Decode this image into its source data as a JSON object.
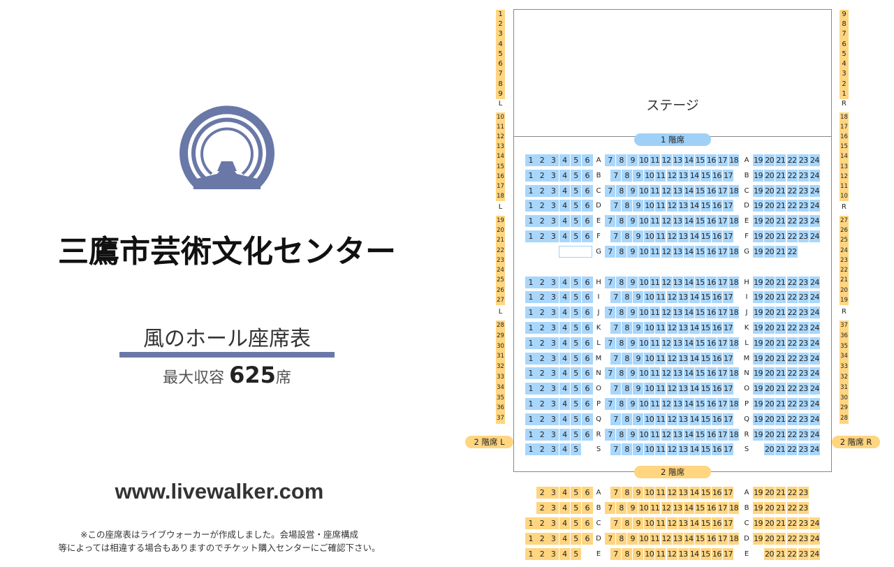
{
  "venue": {
    "name": "三鷹市芸術文化センター",
    "chart_title": "風のホール座席表",
    "capacity_prefix": "最大収容",
    "capacity_number": "625",
    "capacity_suffix": "席",
    "website": "www.livewalker.com",
    "note_line1": "※この座席表はライブウォーカーが作成しました。会場設営・座席構成",
    "note_line2": "等によっては相違する場合もありますのでチケット購入センターにご確認下さい。",
    "logo_icon": "city-emblem-icon",
    "logo_color": "#6a78a8"
  },
  "map": {
    "stage": "ステージ",
    "floor1": "1 階席",
    "floor2": "2 階席",
    "floor2_left": "2 階席 L",
    "floor2_right": "2 階席 R",
    "seat_color_1f": "#a9d6fb",
    "seat_color_2f": "#ffd580",
    "side_L": "L",
    "side_R": "R"
  },
  "floor1_rows": [
    {
      "row": "A",
      "left": "123456",
      "centerStart": 7,
      "centerEnd": 18,
      "right": [
        19,
        24
      ]
    },
    {
      "row": "B",
      "left": "123456",
      "centerStart": 7,
      "centerEnd": 17,
      "right": [
        19,
        24
      ]
    },
    {
      "row": "C",
      "left": "123456",
      "centerStart": 7,
      "centerEnd": 18,
      "right": [
        19,
        24
      ]
    },
    {
      "row": "D",
      "left": "123456",
      "centerStart": 7,
      "centerEnd": 17,
      "right": [
        19,
        24
      ]
    },
    {
      "row": "E",
      "left": "123456",
      "centerStart": 7,
      "centerEnd": 18,
      "right": [
        19,
        24
      ]
    },
    {
      "row": "F",
      "left": "123456",
      "centerStart": 7,
      "centerEnd": 17,
      "right": [
        19,
        24
      ]
    },
    {
      "row": "G",
      "left": "",
      "centerStart": 7,
      "centerEnd": 18,
      "right": [
        19,
        22
      ]
    },
    {
      "row": "H",
      "left": "123456",
      "centerStart": 7,
      "centerEnd": 18,
      "right": [
        19,
        24
      ]
    },
    {
      "row": "I",
      "left": "123456",
      "centerStart": 7,
      "centerEnd": 17,
      "right": [
        19,
        24
      ]
    },
    {
      "row": "J",
      "left": "123456",
      "centerStart": 7,
      "centerEnd": 18,
      "right": [
        19,
        24
      ]
    },
    {
      "row": "K",
      "left": "123456",
      "centerStart": 7,
      "centerEnd": 17,
      "right": [
        19,
        24
      ]
    },
    {
      "row": "L",
      "left": "123456",
      "centerStart": 7,
      "centerEnd": 18,
      "right": [
        19,
        24
      ]
    },
    {
      "row": "M",
      "left": "123456",
      "centerStart": 7,
      "centerEnd": 17,
      "right": [
        19,
        24
      ]
    },
    {
      "row": "N",
      "left": "123456",
      "centerStart": 7,
      "centerEnd": 18,
      "right": [
        19,
        24
      ]
    },
    {
      "row": "O",
      "left": "123456",
      "centerStart": 7,
      "centerEnd": 17,
      "right": [
        19,
        24
      ]
    },
    {
      "row": "P",
      "left": "123456",
      "centerStart": 7,
      "centerEnd": 18,
      "right": [
        19,
        24
      ]
    },
    {
      "row": "Q",
      "left": "123456",
      "centerStart": 7,
      "centerEnd": 17,
      "right": [
        19,
        24
      ]
    },
    {
      "row": "R",
      "left": "123456",
      "centerStart": 7,
      "centerEnd": 18,
      "right": [
        19,
        24
      ]
    },
    {
      "row": "S",
      "left": "12345",
      "centerStart": 7,
      "centerEnd": 17,
      "right": [
        20,
        24
      ]
    }
  ],
  "floor2_rows": [
    {
      "row": "A",
      "left": "23456",
      "centerStart": 7,
      "centerEnd": 17,
      "right": [
        19,
        23
      ]
    },
    {
      "row": "B",
      "left": "23456",
      "centerStart": 7,
      "centerEnd": 18,
      "right": [
        19,
        23
      ]
    },
    {
      "row": "C",
      "left": "123456",
      "centerStart": 7,
      "centerEnd": 17,
      "right": [
        19,
        24
      ]
    },
    {
      "row": "D",
      "left": "123456",
      "centerStart": 7,
      "centerEnd": 18,
      "right": [
        19,
        24
      ]
    },
    {
      "row": "E",
      "left": "12345",
      "centerStart": 7,
      "centerEnd": 17,
      "right": [
        20,
        24
      ]
    }
  ],
  "side_left_groups": [
    [
      1,
      9
    ],
    [
      10,
      18
    ],
    [
      19,
      27
    ],
    [
      28,
      37
    ]
  ],
  "side_right_groups": [
    [
      1,
      9
    ],
    [
      10,
      18
    ],
    [
      19,
      27
    ],
    [
      28,
      37
    ]
  ]
}
